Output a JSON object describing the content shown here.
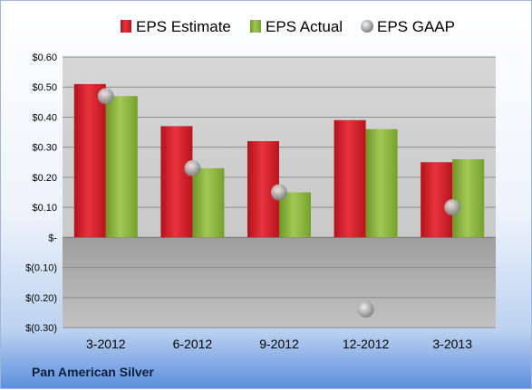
{
  "company": "Pan American Silver",
  "colors": {
    "estimate": "#d6202b",
    "actual": "#8bb43c",
    "gaap": "#a8a8a8"
  },
  "chart_data": {
    "type": "bar",
    "categories": [
      "3-2012",
      "6-2012",
      "9-2012",
      "12-2012",
      "3-2013"
    ],
    "series": [
      {
        "name": "EPS Estimate",
        "kind": "bar",
        "values": [
          0.51,
          0.37,
          0.32,
          0.39,
          0.25
        ]
      },
      {
        "name": "EPS Actual",
        "kind": "bar",
        "values": [
          0.47,
          0.23,
          0.15,
          0.36,
          0.26
        ]
      },
      {
        "name": "EPS GAAP",
        "kind": "scatter",
        "values": [
          0.47,
          0.23,
          0.15,
          -0.24,
          0.1
        ]
      }
    ],
    "ylim": [
      -0.3,
      0.6
    ],
    "yticks": [
      0.6,
      0.5,
      0.4,
      0.3,
      0.2,
      0.1,
      0.0,
      -0.1,
      -0.2,
      -0.3
    ],
    "ytick_labels": [
      "$0.60",
      "$0.50",
      "$0.40",
      "$0.30",
      "$0.20",
      "$0.10",
      "$-",
      "$(0.10)",
      "$(0.20)",
      "$(0.30)"
    ],
    "grid": true,
    "legend_position": "top"
  }
}
